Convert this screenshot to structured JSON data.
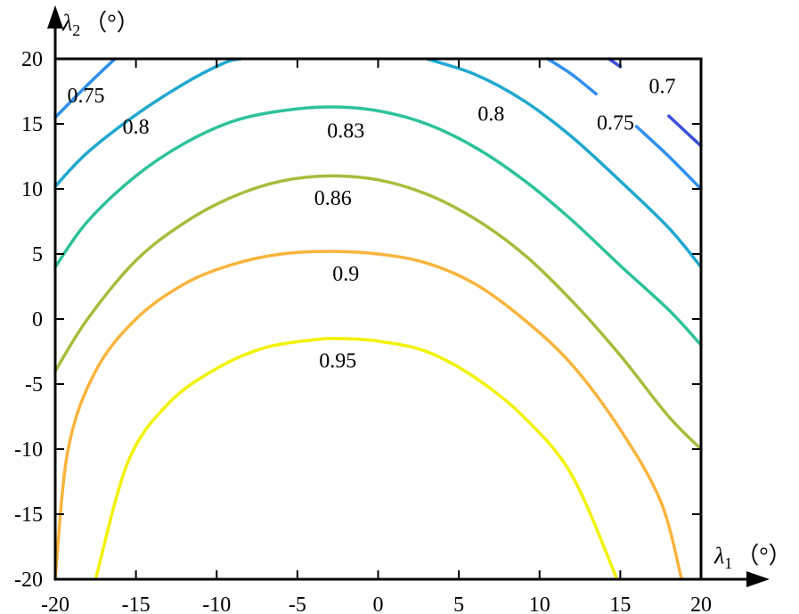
{
  "chart_data": {
    "type": "contour",
    "x_axis": {
      "symbol": "λ",
      "subscript": "1",
      "unit": "（°）",
      "range": [
        -20,
        20
      ],
      "ticks": [
        -20,
        -15,
        -10,
        -5,
        0,
        5,
        10,
        15,
        20
      ]
    },
    "y_axis": {
      "symbol": "λ",
      "subscript": "2",
      "unit": "（°）",
      "range": [
        -20,
        20
      ],
      "ticks": [
        20,
        15,
        10,
        5,
        0,
        -5,
        -10,
        -15,
        -20
      ]
    },
    "grid": false,
    "contours": [
      {
        "level": 0.95,
        "color": "#f2f200",
        "points": [
          [
            -17.5,
            -20
          ],
          [
            -15.5,
            -11
          ],
          [
            -13,
            -6.5
          ],
          [
            -10,
            -3.8
          ],
          [
            -7,
            -2.2
          ],
          [
            -4,
            -1.6
          ],
          [
            -2.5,
            -1.5
          ],
          [
            0,
            -1.7
          ],
          [
            3,
            -2.5
          ],
          [
            6,
            -4.5
          ],
          [
            9,
            -7.5
          ],
          [
            12,
            -12
          ],
          [
            14.8,
            -20
          ]
        ]
      },
      {
        "level": 0.9,
        "color": "#f9b43c",
        "points": [
          [
            -20,
            -20
          ],
          [
            -19.2,
            -10
          ],
          [
            -17.5,
            -4
          ],
          [
            -15,
            0
          ],
          [
            -12,
            2.7
          ],
          [
            -9,
            4.2
          ],
          [
            -6,
            5
          ],
          [
            -3,
            5.2
          ],
          [
            0,
            5
          ],
          [
            3,
            4.3
          ],
          [
            6,
            2.7
          ],
          [
            9,
            0
          ],
          [
            12,
            -3.5
          ],
          [
            15,
            -8.5
          ],
          [
            17.5,
            -14
          ],
          [
            18.8,
            -20
          ]
        ]
      },
      {
        "level": 0.86,
        "color": "#a6bd3c",
        "points": [
          [
            -20,
            -4
          ],
          [
            -18,
            0
          ],
          [
            -15,
            4.5
          ],
          [
            -12,
            7.4
          ],
          [
            -9,
            9.4
          ],
          [
            -6,
            10.6
          ],
          [
            -3,
            11
          ],
          [
            0,
            10.7
          ],
          [
            3,
            9.6
          ],
          [
            6,
            7.7
          ],
          [
            9,
            5
          ],
          [
            12,
            1.4
          ],
          [
            15,
            -2.8
          ],
          [
            18,
            -7.5
          ],
          [
            20,
            -10
          ]
        ]
      },
      {
        "level": 0.83,
        "color": "#2ec29a",
        "points": [
          [
            -20,
            4
          ],
          [
            -18,
            7.5
          ],
          [
            -15,
            11
          ],
          [
            -12,
            13.5
          ],
          [
            -9,
            15.2
          ],
          [
            -6,
            16
          ],
          [
            -3,
            16.3
          ],
          [
            0,
            16
          ],
          [
            3,
            15
          ],
          [
            6,
            13.2
          ],
          [
            9,
            10.7
          ],
          [
            12,
            7.6
          ],
          [
            15,
            4.1
          ],
          [
            18,
            0.7
          ],
          [
            20,
            -2
          ]
        ]
      },
      {
        "level": 0.8,
        "color": "#1fa8d0",
        "points": [
          [
            -20,
            10.2
          ],
          [
            -18,
            12.8
          ],
          [
            -15,
            15.7
          ],
          [
            -12,
            18.1
          ],
          [
            -9.5,
            19.7
          ],
          [
            -8.5,
            20
          ]
        ]
      },
      {
        "level": 0.8,
        "color": "#1fa8d0",
        "points": [
          [
            3,
            20
          ],
          [
            6,
            18.8
          ],
          [
            9,
            16.8
          ],
          [
            12,
            14
          ],
          [
            15,
            10.6
          ],
          [
            18,
            7
          ],
          [
            20,
            4
          ]
        ]
      },
      {
        "level": 0.75,
        "color": "#2f8ff0",
        "points": [
          [
            -20,
            15.5
          ],
          [
            -18,
            18
          ],
          [
            -16.3,
            20
          ]
        ]
      },
      {
        "level": 0.75,
        "color": "#2f8ff0",
        "points": [
          [
            10.5,
            20
          ],
          [
            12,
            18.8
          ],
          [
            13.5,
            17.3
          ]
        ]
      },
      {
        "level": 0.75,
        "color": "#2f8ff0",
        "points": [
          [
            16,
            14.8
          ],
          [
            18,
            12.5
          ],
          [
            20,
            10
          ]
        ]
      },
      {
        "level": 0.7,
        "color": "#3a4fd8",
        "points": [
          [
            14.3,
            20
          ],
          [
            15,
            19.4
          ]
        ]
      },
      {
        "level": 0.7,
        "color": "#3a4fd8",
        "points": [
          [
            18,
            15.6
          ],
          [
            20,
            13.3
          ]
        ]
      }
    ],
    "contour_labels": [
      {
        "text": "0.75",
        "x": -18.1,
        "y": 17.2
      },
      {
        "text": "0.8",
        "x": -15,
        "y": 14.8
      },
      {
        "text": "0.83",
        "x": -2,
        "y": 14.5
      },
      {
        "text": "0.86",
        "x": -2.8,
        "y": 9.3
      },
      {
        "text": "0.9",
        "x": -2,
        "y": 3.5
      },
      {
        "text": "0.95",
        "x": -2.5,
        "y": -3.2
      },
      {
        "text": "0.8",
        "x": 7,
        "y": 15.8
      },
      {
        "text": "0.75",
        "x": 14.7,
        "y": 15.1
      },
      {
        "text": "0.7",
        "x": 17.6,
        "y": 17.9
      }
    ]
  }
}
